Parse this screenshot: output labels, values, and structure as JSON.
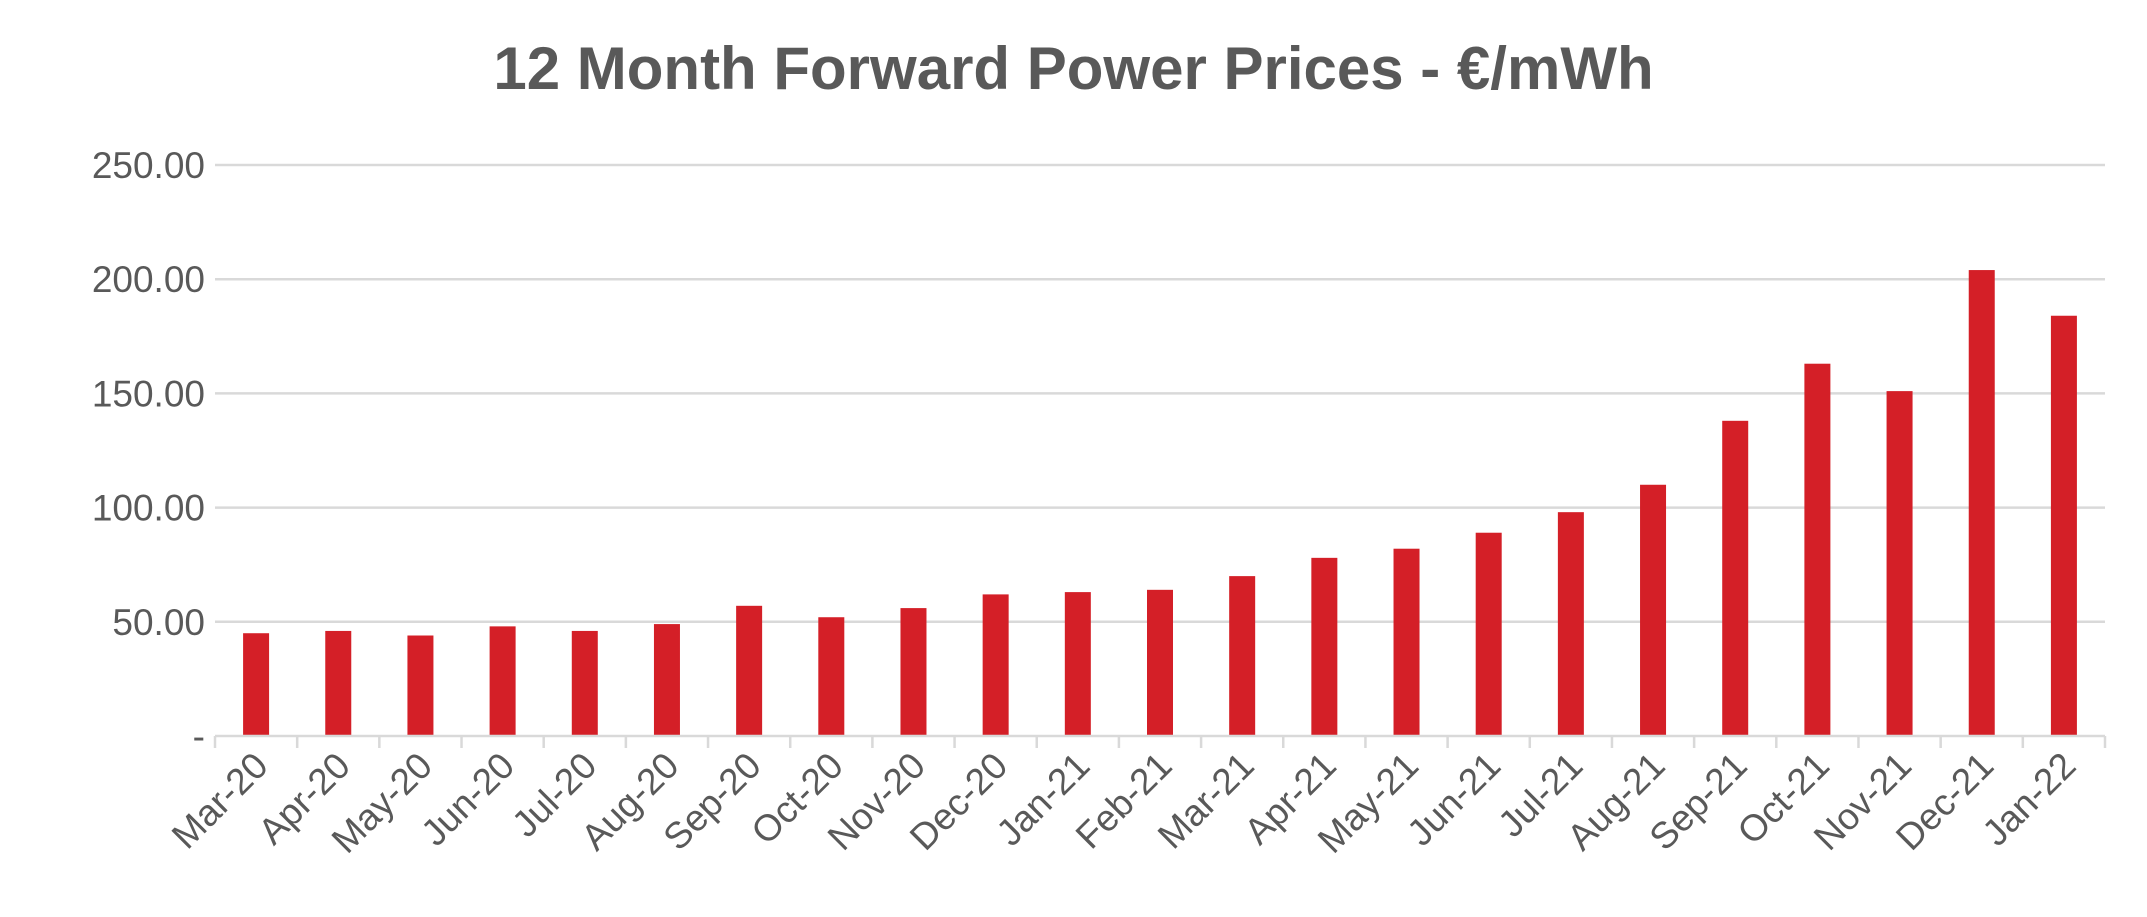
{
  "chart_data": {
    "type": "bar",
    "title": "12 Month Forward Power Prices - €/mWh",
    "xlabel": "",
    "ylabel": "",
    "categories": [
      "Mar-20",
      "Apr-20",
      "May-20",
      "Jun-20",
      "Jul-20",
      "Aug-20",
      "Sep-20",
      "Oct-20",
      "Nov-20",
      "Dec-20",
      "Jan-21",
      "Feb-21",
      "Mar-21",
      "Apr-21",
      "May-21",
      "Jun-21",
      "Jul-21",
      "Aug-21",
      "Sep-21",
      "Oct-21",
      "Nov-21",
      "Dec-21",
      "Jan-22"
    ],
    "values": [
      45,
      46,
      44,
      48,
      46,
      49,
      57,
      52,
      56,
      62,
      63,
      64,
      70,
      78,
      82,
      89,
      98,
      110,
      138,
      163,
      151,
      204,
      184
    ],
    "ylim": [
      0,
      250
    ],
    "yticks": [
      0,
      50,
      100,
      150,
      200,
      250
    ],
    "ytick_labels": [
      "-",
      "50.00",
      "100.00",
      "150.00",
      "200.00",
      "250.00"
    ],
    "bar_color": "#d41f27",
    "grid": true,
    "legend": "none"
  }
}
